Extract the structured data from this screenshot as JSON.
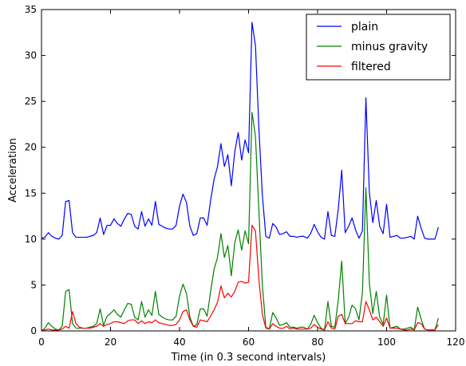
{
  "chart_data": {
    "type": "line",
    "xlabel": "Time (in 0.3 second intervals)",
    "ylabel": "Acceleration",
    "xlim": [
      0,
      120
    ],
    "ylim": [
      0,
      35
    ],
    "x_ticks": [
      "0",
      "20",
      "40",
      "60",
      "80",
      "100",
      "120"
    ],
    "y_ticks": [
      "0",
      "5",
      "10",
      "15",
      "20",
      "25",
      "30",
      "35"
    ],
    "grid": false,
    "legend_position": "top-right",
    "x": [
      0,
      1,
      2,
      3,
      4,
      5,
      6,
      7,
      8,
      9,
      10,
      11,
      12,
      13,
      14,
      15,
      16,
      17,
      18,
      19,
      20,
      21,
      22,
      23,
      24,
      25,
      26,
      27,
      28,
      29,
      30,
      31,
      32,
      33,
      34,
      35,
      36,
      37,
      38,
      39,
      40,
      41,
      42,
      43,
      44,
      45,
      46,
      47,
      48,
      49,
      50,
      51,
      52,
      53,
      54,
      55,
      56,
      57,
      58,
      59,
      60,
      61,
      62,
      63,
      64,
      65,
      66,
      67,
      68,
      69,
      70,
      71,
      72,
      73,
      74,
      75,
      76,
      77,
      78,
      79,
      80,
      81,
      82,
      83,
      84,
      85,
      86,
      87,
      88,
      89,
      90,
      91,
      92,
      93,
      94,
      95,
      96,
      97,
      98,
      99,
      100,
      101,
      102,
      103,
      104,
      105,
      106,
      107,
      108,
      109,
      110,
      111,
      112,
      113,
      114,
      115
    ],
    "series": [
      {
        "name": "plain",
        "color": "#0000ff",
        "values": [
          10.1,
          10.2,
          10.7,
          10.3,
          10.1,
          10.0,
          10.4,
          14.1,
          14.2,
          10.7,
          10.2,
          10.2,
          10.2,
          10.2,
          10.3,
          10.4,
          10.7,
          12.3,
          10.5,
          11.5,
          11.5,
          12.2,
          11.7,
          11.4,
          12.2,
          12.8,
          12.7,
          11.4,
          11.1,
          13.0,
          11.4,
          12.2,
          11.5,
          14.1,
          11.6,
          11.4,
          11.2,
          11.1,
          11.1,
          11.5,
          13.6,
          14.9,
          14.0,
          11.4,
          10.4,
          10.6,
          12.3,
          12.3,
          11.5,
          14.2,
          16.5,
          17.9,
          20.4,
          17.9,
          19.2,
          15.8,
          19.5,
          21.6,
          18.6,
          20.8,
          19.4,
          33.6,
          31.1,
          22.0,
          14.8,
          10.3,
          10.1,
          11.7,
          11.3,
          10.5,
          10.6,
          10.8,
          10.3,
          10.3,
          10.2,
          10.3,
          10.3,
          10.1,
          10.6,
          11.6,
          10.8,
          10.2,
          10.0,
          13.0,
          10.4,
          10.3,
          13.3,
          17.5,
          10.7,
          11.4,
          12.3,
          11.0,
          10.1,
          10.9,
          25.4,
          15.1,
          11.8,
          14.2,
          11.4,
          10.6,
          13.8,
          10.2,
          10.3,
          10.4,
          10.1,
          10.1,
          10.2,
          10.3,
          10.0,
          12.5,
          11.2,
          10.1,
          10.0,
          10.0,
          10.0,
          11.3
        ]
      },
      {
        "name": "minus gravity",
        "color": "#008000",
        "values": [
          0.0,
          0.3,
          0.9,
          0.5,
          0.2,
          0.1,
          0.5,
          4.3,
          4.5,
          0.8,
          0.3,
          0.3,
          0.3,
          0.3,
          0.4,
          0.5,
          0.8,
          2.4,
          0.6,
          1.6,
          1.9,
          2.3,
          1.8,
          1.5,
          2.3,
          3.0,
          2.9,
          1.5,
          1.2,
          3.2,
          1.5,
          2.3,
          1.7,
          4.3,
          1.8,
          1.5,
          1.3,
          1.2,
          1.2,
          1.6,
          3.8,
          5.1,
          4.1,
          1.5,
          0.5,
          0.7,
          2.4,
          2.4,
          1.6,
          4.3,
          6.7,
          8.0,
          10.6,
          8.0,
          9.3,
          6.0,
          9.6,
          11.0,
          8.8,
          10.9,
          9.5,
          23.8,
          21.2,
          13.0,
          5.0,
          0.4,
          0.2,
          2.0,
          1.4,
          0.6,
          0.7,
          0.9,
          0.4,
          0.4,
          0.3,
          0.4,
          0.4,
          0.2,
          0.7,
          1.7,
          0.9,
          0.3,
          0.1,
          3.2,
          0.5,
          0.4,
          3.4,
          7.6,
          0.8,
          1.5,
          2.8,
          2.4,
          1.2,
          4.2,
          15.6,
          5.2,
          1.9,
          4.3,
          1.5,
          0.7,
          3.9,
          0.3,
          0.4,
          0.5,
          0.2,
          0.2,
          0.3,
          0.4,
          0.1,
          2.6,
          1.3,
          0.2,
          0.1,
          0.1,
          0.1,
          1.4
        ]
      },
      {
        "name": "filtered",
        "color": "#ff0000",
        "values": [
          0.0,
          0.1,
          0.2,
          0.1,
          0.1,
          0.1,
          0.2,
          0.5,
          0.3,
          2.1,
          0.8,
          0.4,
          0.3,
          0.3,
          0.3,
          0.4,
          0.5,
          0.8,
          0.5,
          0.7,
          0.8,
          1.0,
          1.0,
          0.9,
          0.8,
          1.1,
          1.2,
          1.2,
          0.8,
          1.1,
          0.8,
          1.0,
          0.9,
          1.2,
          0.9,
          0.8,
          0.7,
          0.6,
          0.6,
          0.7,
          1.2,
          2.1,
          2.3,
          1.2,
          0.5,
          0.4,
          1.2,
          1.1,
          1.0,
          1.6,
          2.3,
          3.1,
          4.9,
          3.6,
          4.1,
          3.7,
          4.3,
          5.3,
          5.4,
          5.2,
          5.3,
          11.5,
          10.9,
          5.6,
          1.8,
          0.3,
          0.2,
          0.8,
          0.5,
          0.3,
          0.3,
          0.5,
          0.2,
          0.3,
          0.2,
          0.2,
          0.2,
          0.2,
          0.3,
          0.7,
          0.4,
          0.2,
          0.1,
          1.0,
          0.3,
          0.2,
          1.6,
          1.8,
          0.8,
          0.8,
          0.8,
          1.1,
          1.0,
          1.0,
          3.2,
          2.3,
          1.2,
          1.5,
          1.0,
          0.5,
          1.4,
          0.3,
          0.3,
          0.3,
          0.2,
          0.1,
          0.1,
          0.2,
          0.1,
          0.9,
          0.8,
          0.2,
          0.1,
          0.1,
          0.1,
          0.7
        ]
      }
    ]
  }
}
